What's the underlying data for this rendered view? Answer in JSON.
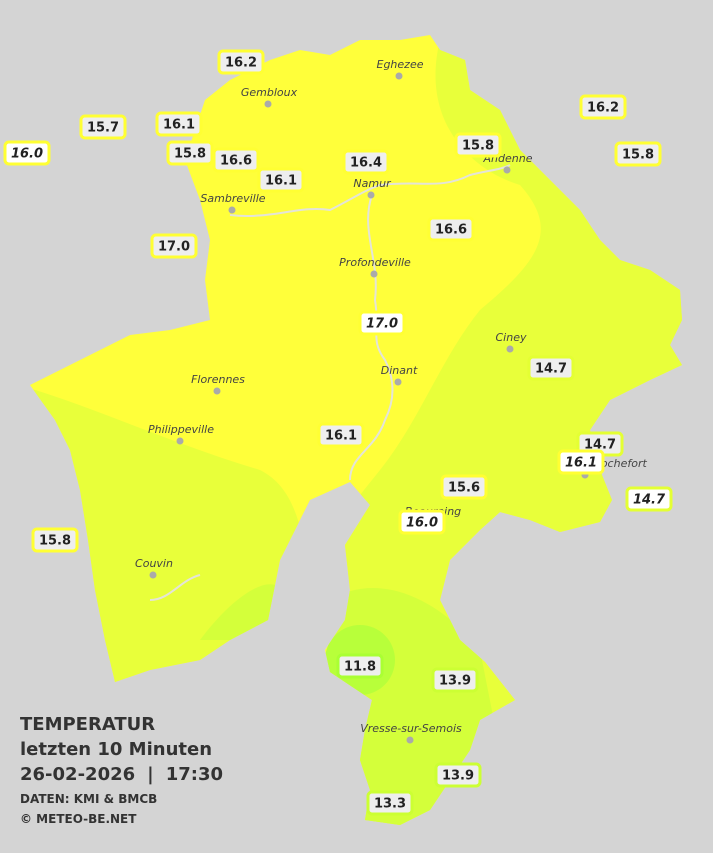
{
  "legend": {
    "title": "TEMPERATUR",
    "subtitle": "letzten 10 Minuten",
    "date": "26-02-2026",
    "separator": "|",
    "time": "17:30",
    "source": "DATEN: KMI & BMCB",
    "copyright": "© METEO-BE.NET"
  },
  "cities": [
    "Eghezee",
    "Gembloux",
    "Andenne",
    "Namur",
    "Sambreville",
    "Profondeville",
    "Ciney",
    "Dinant",
    "Florennes",
    "Philippeville",
    "Couvin",
    "Vresse-sur-Semois",
    "Rochefort",
    "Beauraing"
  ],
  "stations": [
    {
      "label": "16.2",
      "italic": false
    },
    {
      "label": "15.7",
      "italic": false
    },
    {
      "label": "16.1",
      "italic": false
    },
    {
      "label": "16.0",
      "italic": true
    },
    {
      "label": "15.8",
      "italic": false
    },
    {
      "label": "16.6",
      "italic": false
    },
    {
      "label": "16.1",
      "italic": false
    },
    {
      "label": "16.4",
      "italic": false
    },
    {
      "label": "15.8",
      "italic": false
    },
    {
      "label": "16.2",
      "italic": false
    },
    {
      "label": "15.8",
      "italic": false
    },
    {
      "label": "17.0",
      "italic": false
    },
    {
      "label": "16.6",
      "italic": false
    },
    {
      "label": "17.0",
      "italic": true
    },
    {
      "label": "14.7",
      "italic": false
    },
    {
      "label": "16.1",
      "italic": false
    },
    {
      "label": "14.7",
      "italic": false
    },
    {
      "label": "16.1",
      "italic": true
    },
    {
      "label": "15.6",
      "italic": false
    },
    {
      "label": "16.0",
      "italic": true
    },
    {
      "label": "14.7",
      "italic": true
    },
    {
      "label": "15.8",
      "italic": false
    },
    {
      "label": "11.8",
      "italic": false
    },
    {
      "label": "13.9",
      "italic": false
    },
    {
      "label": "13.9",
      "italic": false
    },
    {
      "label": "13.3",
      "italic": false
    }
  ]
}
